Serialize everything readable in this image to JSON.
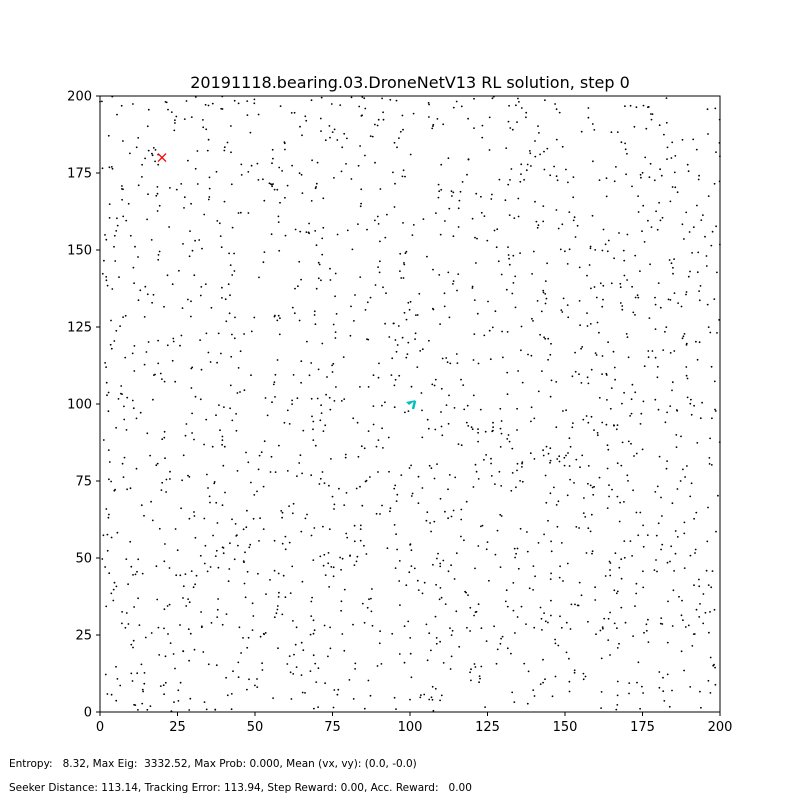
{
  "chart_data": {
    "type": "scatter",
    "title": "20191118.bearing.03.DroneNetV13 RL solution, step 0",
    "xlabel": "",
    "ylabel": "",
    "xlim": [
      0,
      200
    ],
    "ylim": [
      0,
      200
    ],
    "xticks": [
      0,
      25,
      50,
      75,
      100,
      125,
      150,
      175,
      200
    ],
    "yticks": [
      0,
      25,
      50,
      75,
      100,
      125,
      150,
      175,
      200
    ],
    "grid": false,
    "particles": {
      "color": "#000000",
      "count": 2000,
      "distribution": "uniform random over [0,200] x [0,200]"
    },
    "target": {
      "x": 20,
      "y": 180,
      "marker": "x",
      "color": "#ff0000"
    },
    "seeker": {
      "x": 100,
      "y": 100,
      "marker": "arrow",
      "color": "#00bfbf"
    }
  },
  "footer": {
    "line1": "Entropy:   8.32, Max Eig:  3332.52, Max Prob: 0.000, Mean (vx, vy): (0.0, -0.0)",
    "line2": "Seeker Distance: 113.14, Tracking Error: 113.94, Step Reward: 0.00, Acc. Reward:   0.00"
  }
}
